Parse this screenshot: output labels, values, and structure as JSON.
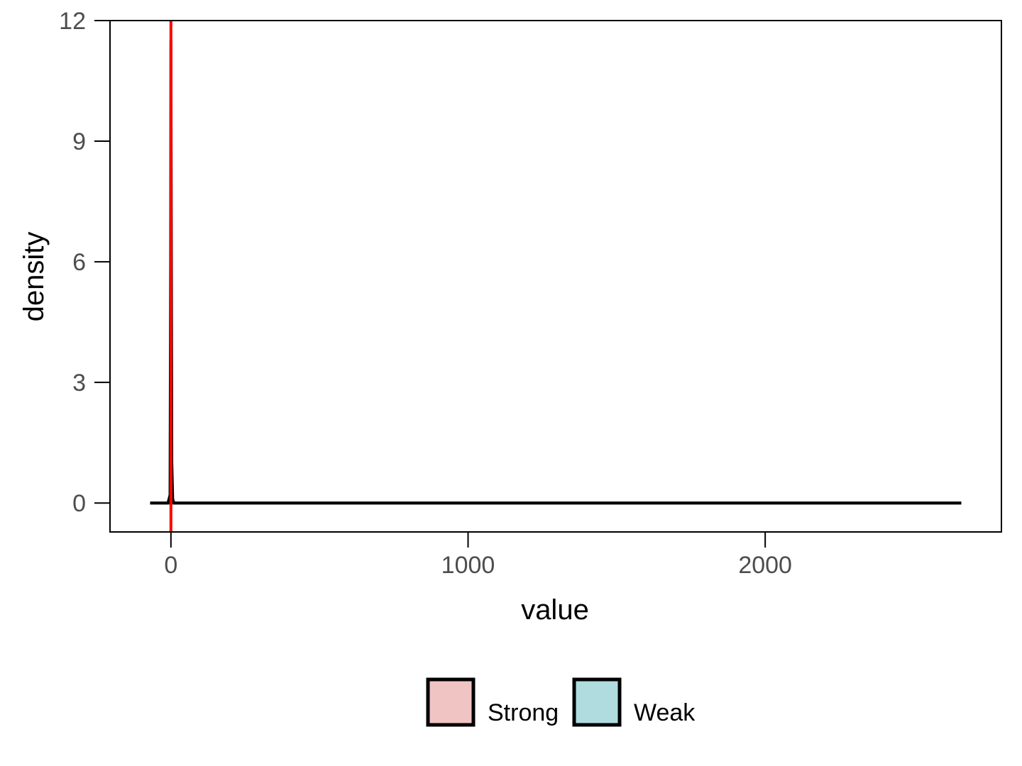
{
  "chart_data": {
    "type": "area",
    "xlabel": "value",
    "ylabel": "density",
    "xlim": [
      -205,
      2795
    ],
    "ylim": [
      -0.72,
      12.0
    ],
    "x_ticks": [
      0,
      1000,
      2000
    ],
    "x_tick_labels": [
      "0",
      "1000",
      "2000"
    ],
    "y_ticks": [
      0,
      3,
      6,
      9,
      12
    ],
    "y_tick_labels": [
      "0",
      "3",
      "6",
      "9",
      "12"
    ],
    "grid": false,
    "series": [
      {
        "name": "Strong",
        "fill": "#f1c4c4",
        "x": [
          -70,
          -10,
          -3,
          -1,
          0,
          1,
          3,
          6,
          10,
          2660
        ],
        "y": [
          0,
          0,
          0.2,
          6.0,
          11.5,
          8.0,
          1.0,
          0.1,
          0,
          0
        ]
      },
      {
        "name": "Weak",
        "fill": "#b0dcdf",
        "x": [
          -70,
          2660
        ],
        "y": [
          0,
          0
        ]
      }
    ],
    "vline": {
      "x": 0,
      "color": "#ff0000"
    },
    "legend": {
      "position": "bottom"
    }
  }
}
